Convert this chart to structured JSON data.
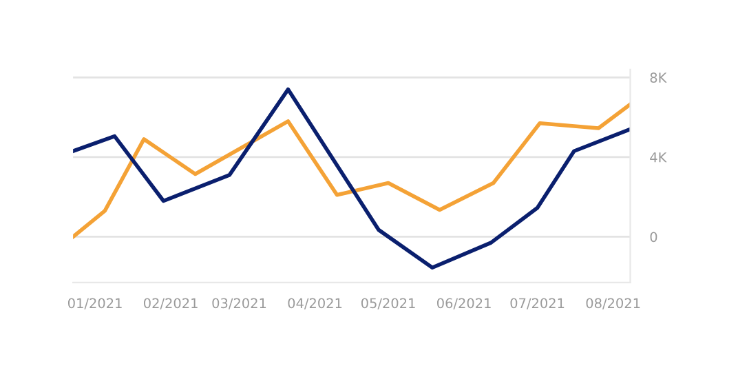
{
  "chart_data": {
    "type": "line",
    "series": [
      {
        "color": "#f4a236",
        "x": [
          "2020-12-23",
          "2021-01-05",
          "2021-01-21",
          "2021-02-11",
          "2021-03-21",
          "2021-04-10",
          "2021-05-01",
          "2021-05-22",
          "2021-06-13",
          "2021-07-02",
          "2021-07-26",
          "2021-08-08"
        ],
        "values": [
          0,
          1300,
          4900,
          3150,
          5800,
          2100,
          2700,
          1350,
          2700,
          5700,
          5450,
          6650
        ]
      },
      {
        "color": "#0a1f6e",
        "x": [
          "2020-12-23",
          "2021-01-09",
          "2021-01-29",
          "2021-02-25",
          "2021-03-21",
          "2021-04-27",
          "2021-05-19",
          "2021-06-12",
          "2021-07-01",
          "2021-07-16",
          "2021-08-08"
        ],
        "values": [
          4300,
          5050,
          1800,
          3100,
          7400,
          350,
          -1550,
          -300,
          1450,
          4300,
          5400
        ]
      }
    ],
    "xlim": [
      "2020-12-23",
      "2021-08-08"
    ],
    "xticks": [
      {
        "value": "2021-01",
        "label": "01/2021"
      },
      {
        "value": "2021-02",
        "label": "02/2021"
      },
      {
        "value": "2021-03",
        "label": "03/2021"
      },
      {
        "value": "2021-04",
        "label": "04/2021"
      },
      {
        "value": "2021-05",
        "label": "05/2021"
      },
      {
        "value": "2021-06",
        "label": "06/2021"
      },
      {
        "value": "2021-07",
        "label": "07/2021"
      },
      {
        "value": "2021-08",
        "label": "08/2021"
      }
    ],
    "ylim": [
      -2300,
      8400
    ],
    "yticks": [
      0,
      {
        "value": 4000,
        "label": "4K"
      },
      {
        "value": 8000,
        "label": "8K"
      }
    ],
    "grid": "y",
    "marker": "none",
    "line_style": "solid"
  }
}
